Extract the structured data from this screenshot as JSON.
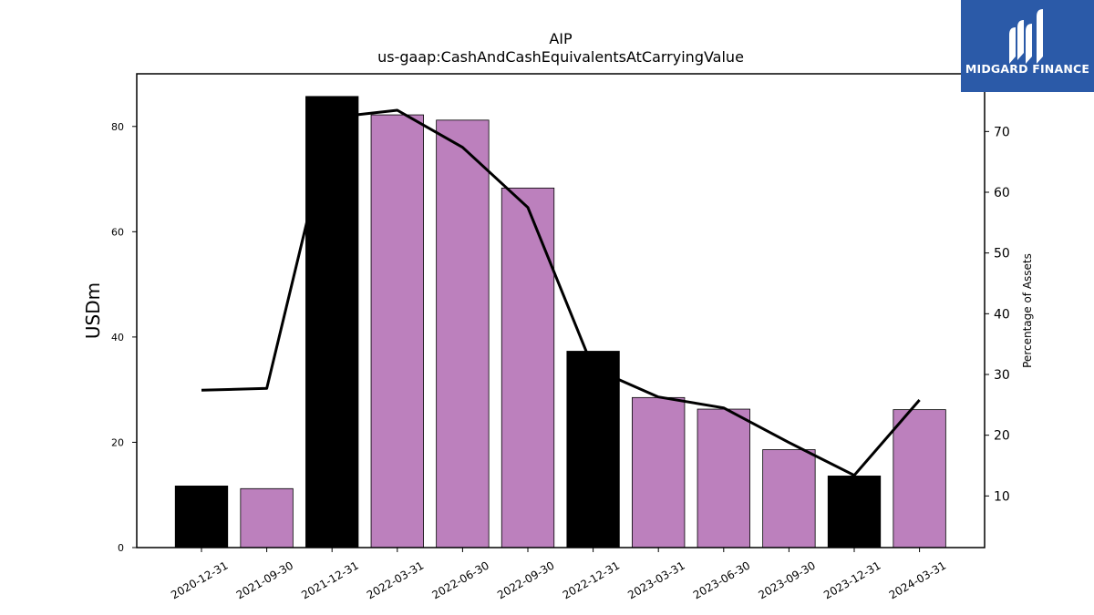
{
  "chart_data": {
    "type": "bar",
    "title": "AIP",
    "subtitle": "us-gaap:CashAndCashEquivalentsAtCarryingValue",
    "categories": [
      "2020-12-31",
      "2021-09-30",
      "2021-12-31",
      "2022-03-31",
      "2022-06-30",
      "2022-09-30",
      "2022-12-31",
      "2023-03-31",
      "2023-06-30",
      "2023-09-30",
      "2023-12-31",
      "2024-03-31"
    ],
    "series": [
      {
        "axis": "left",
        "kind": "bar",
        "values": [
          11.7,
          11.2,
          85.7,
          82.2,
          81.2,
          68.3,
          37.3,
          28.5,
          26.3,
          18.6,
          13.6,
          26.2
        ],
        "colors": [
          "#000000",
          "#bc80bd",
          "#000000",
          "#bc80bd",
          "#bc80bd",
          "#bc80bd",
          "#000000",
          "#bc80bd",
          "#bc80bd",
          "#bc80bd",
          "#000000",
          "#bc80bd"
        ]
      },
      {
        "axis": "right",
        "kind": "line",
        "color": "#000000",
        "values": [
          27.4,
          27.7,
          72.3,
          73.5,
          67.4,
          57.5,
          31.0,
          26.3,
          24.5,
          18.8,
          13.4,
          25.8
        ]
      }
    ],
    "ylabel": "USDm",
    "y2label": "Percentage of Assets",
    "ylim": [
      0,
      90
    ],
    "y2lim": [
      1.5,
      79.5
    ],
    "yticks": [
      0,
      20,
      40,
      60,
      80
    ],
    "y2ticks": [
      10,
      20,
      30,
      40,
      50,
      60,
      70
    ],
    "grid": false,
    "legend": "none"
  },
  "logo": {
    "text": "MIDGARD FINANCE",
    "bg": "#2b5aa8"
  }
}
